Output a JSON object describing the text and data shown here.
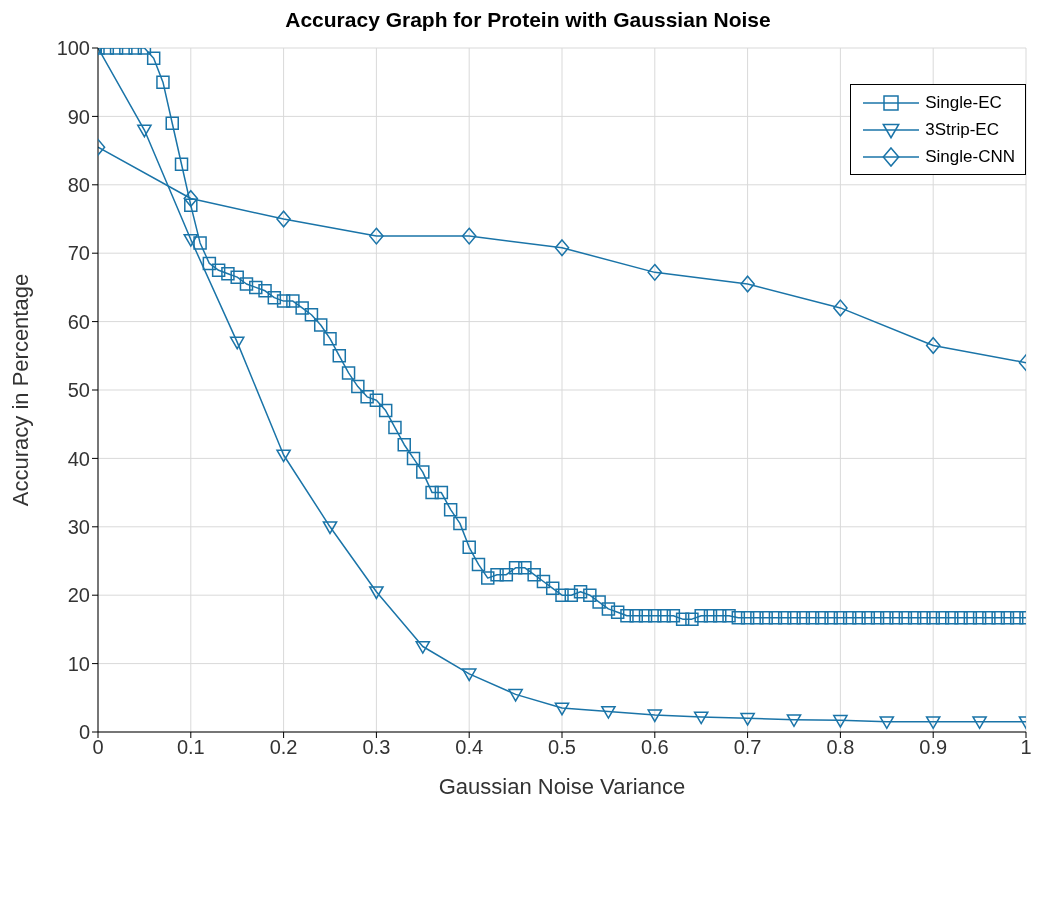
{
  "chart_data": {
    "type": "line",
    "title": "Accuracy Graph for Protein with Gaussian Noise",
    "xlabel": "Gaussian Noise Variance",
    "ylabel": "Accuracy in Percentage",
    "xlim": [
      0,
      1
    ],
    "xticks": [
      0,
      0.1,
      0.2,
      0.3,
      0.4,
      0.5,
      0.6,
      0.7,
      0.8,
      0.9,
      1
    ],
    "ylim": [
      0,
      100
    ],
    "yticks": [
      0,
      10,
      20,
      30,
      40,
      50,
      60,
      70,
      80,
      90,
      100
    ],
    "grid": true,
    "legend": "top right",
    "line_style": "solid",
    "series": [
      {
        "name": "Single-EC",
        "color": "#1a74a8",
        "marker": "square",
        "x": [
          0,
          0.01,
          0.02,
          0.03,
          0.04,
          0.05,
          0.06,
          0.07,
          0.08,
          0.09,
          0.1,
          0.11,
          0.12,
          0.13,
          0.14,
          0.15,
          0.16,
          0.17,
          0.18,
          0.19,
          0.2,
          0.21,
          0.22,
          0.23,
          0.24,
          0.25,
          0.26,
          0.27,
          0.28,
          0.29,
          0.3,
          0.31,
          0.32,
          0.33,
          0.34,
          0.35,
          0.36,
          0.37,
          0.38,
          0.39,
          0.4,
          0.41,
          0.42,
          0.43,
          0.44,
          0.45,
          0.46,
          0.47,
          0.48,
          0.49,
          0.5,
          0.51,
          0.52,
          0.53,
          0.54,
          0.55,
          0.56,
          0.57,
          0.58,
          0.59,
          0.6,
          0.61,
          0.62,
          0.63,
          0.64,
          0.65,
          0.66,
          0.67,
          0.68,
          0.69,
          0.7,
          0.71,
          0.72,
          0.73,
          0.74,
          0.75,
          0.76,
          0.77,
          0.78,
          0.79,
          0.8,
          0.81,
          0.82,
          0.83,
          0.84,
          0.85,
          0.86,
          0.87,
          0.88,
          0.89,
          0.9,
          0.91,
          0.92,
          0.93,
          0.94,
          0.95,
          0.96,
          0.97,
          0.98,
          0.99,
          1
        ],
        "values": [
          100,
          100,
          100,
          100,
          100,
          100,
          98.5,
          95,
          89,
          83,
          77,
          71.5,
          68.5,
          67.5,
          67,
          66.5,
          65.5,
          65,
          64.5,
          63.5,
          63,
          63,
          62,
          61,
          59.5,
          57.5,
          55,
          52.5,
          50.5,
          49,
          48.5,
          47,
          44.5,
          42,
          40,
          38,
          35,
          35,
          32.5,
          30.5,
          27,
          24.5,
          22.5,
          23,
          23,
          24,
          24,
          23,
          22,
          21,
          20,
          20,
          20.5,
          20,
          19,
          18,
          17.5,
          17,
          17,
          17,
          17,
          17,
          17,
          16.5,
          16.5,
          17,
          17,
          17,
          17,
          16.7,
          16.7,
          16.7,
          16.7,
          16.7,
          16.7,
          16.7,
          16.7,
          16.7,
          16.7,
          16.7,
          16.7,
          16.7,
          16.7,
          16.7,
          16.7,
          16.7,
          16.7,
          16.7,
          16.7,
          16.7,
          16.7,
          16.7,
          16.7,
          16.7,
          16.7,
          16.7,
          16.7,
          16.7,
          16.7,
          16.7,
          16.7
        ]
      },
      {
        "name": "3Strip-EC",
        "color": "#1a74a8",
        "marker": "triangle",
        "x": [
          0,
          0.05,
          0.1,
          0.15,
          0.2,
          0.25,
          0.3,
          0.35,
          0.4,
          0.45,
          0.5,
          0.55,
          0.6,
          0.65,
          0.7,
          0.75,
          0.8,
          0.85,
          0.9,
          0.95,
          1
        ],
        "values": [
          100,
          88,
          72,
          57,
          40.5,
          30,
          20.5,
          12.5,
          8.5,
          5.5,
          3.5,
          3,
          2.5,
          2.2,
          2,
          1.8,
          1.7,
          1.5,
          1.5,
          1.5,
          1.5
        ]
      },
      {
        "name": "Single-CNN",
        "color": "#1a74a8",
        "marker": "diamond",
        "x": [
          0,
          0.1,
          0.2,
          0.3,
          0.4,
          0.5,
          0.6,
          0.7,
          0.8,
          0.9,
          1
        ],
        "values": [
          85.5,
          78,
          75,
          72.5,
          72.5,
          70.8,
          67.2,
          65.5,
          62,
          56.5,
          54
        ]
      }
    ]
  }
}
